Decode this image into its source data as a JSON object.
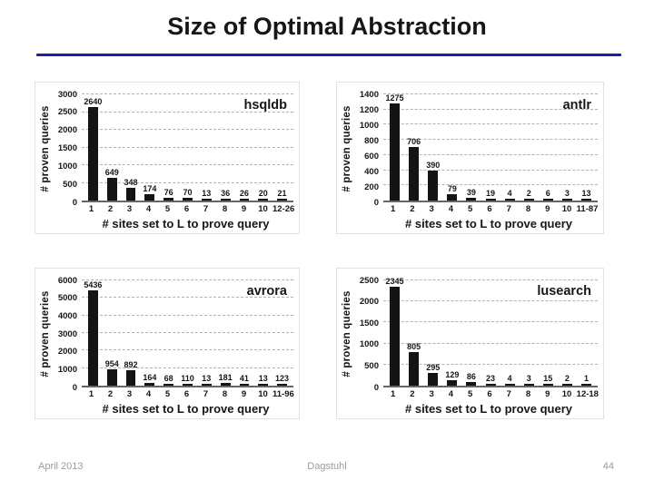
{
  "slide": {
    "title": "Size of Optimal Abstraction",
    "footer": {
      "date": "April 2013",
      "venue": "Dagstuhl",
      "page": "44"
    }
  },
  "colors": {
    "accent_rule": "#1d1daa",
    "bar": "#141414",
    "footer_text": "#9b9b9b"
  },
  "chart_data": [
    {
      "type": "bar",
      "name": "hsqldb",
      "ylabel": "# proven queries",
      "xlabel": "# sites set to L to prove query",
      "categories": [
        "1",
        "2",
        "3",
        "4",
        "5",
        "6",
        "7",
        "8",
        "9",
        "10",
        "12-26"
      ],
      "values": [
        2640,
        649,
        348,
        174,
        76,
        70,
        13,
        36,
        26,
        20,
        21
      ],
      "ylim": [
        0,
        3000
      ],
      "ytick_step": 500,
      "grid": "dashed-horizontal",
      "legend": "none",
      "bar_color": "#141414"
    },
    {
      "type": "bar",
      "name": "antlr",
      "ylabel": "# proven queries",
      "xlabel": "# sites set to L to prove query",
      "categories": [
        "1",
        "2",
        "3",
        "4",
        "5",
        "6",
        "7",
        "8",
        "9",
        "10",
        "11-87"
      ],
      "values": [
        1275,
        706,
        390,
        79,
        39,
        19,
        4,
        2,
        6,
        3,
        13
      ],
      "ylim": [
        0,
        1400
      ],
      "ytick_step": 200,
      "grid": "dashed-horizontal",
      "legend": "none",
      "bar_color": "#141414"
    },
    {
      "type": "bar",
      "name": "avrora",
      "ylabel": "# proven queries",
      "xlabel": "# sites set to L to prove query",
      "categories": [
        "1",
        "2",
        "3",
        "4",
        "5",
        "6",
        "7",
        "8",
        "9",
        "10",
        "11-96"
      ],
      "values": [
        5436,
        954,
        892,
        164,
        68,
        110,
        13,
        181,
        41,
        13,
        123
      ],
      "ylim": [
        0,
        6000
      ],
      "ytick_step": 1000,
      "grid": "dashed-horizontal",
      "legend": "none",
      "bar_color": "#141414"
    },
    {
      "type": "bar",
      "name": "lusearch",
      "ylabel": "# proven queries",
      "xlabel": "# sites set to L to prove query",
      "categories": [
        "1",
        "2",
        "3",
        "4",
        "5",
        "6",
        "7",
        "8",
        "9",
        "10",
        "12-18"
      ],
      "values": [
        2345,
        805,
        295,
        129,
        86,
        23,
        4,
        3,
        15,
        2,
        1
      ],
      "ylim": [
        0,
        2500
      ],
      "ytick_step": 500,
      "grid": "dashed-horizontal",
      "legend": "none",
      "bar_color": "#141414"
    }
  ]
}
